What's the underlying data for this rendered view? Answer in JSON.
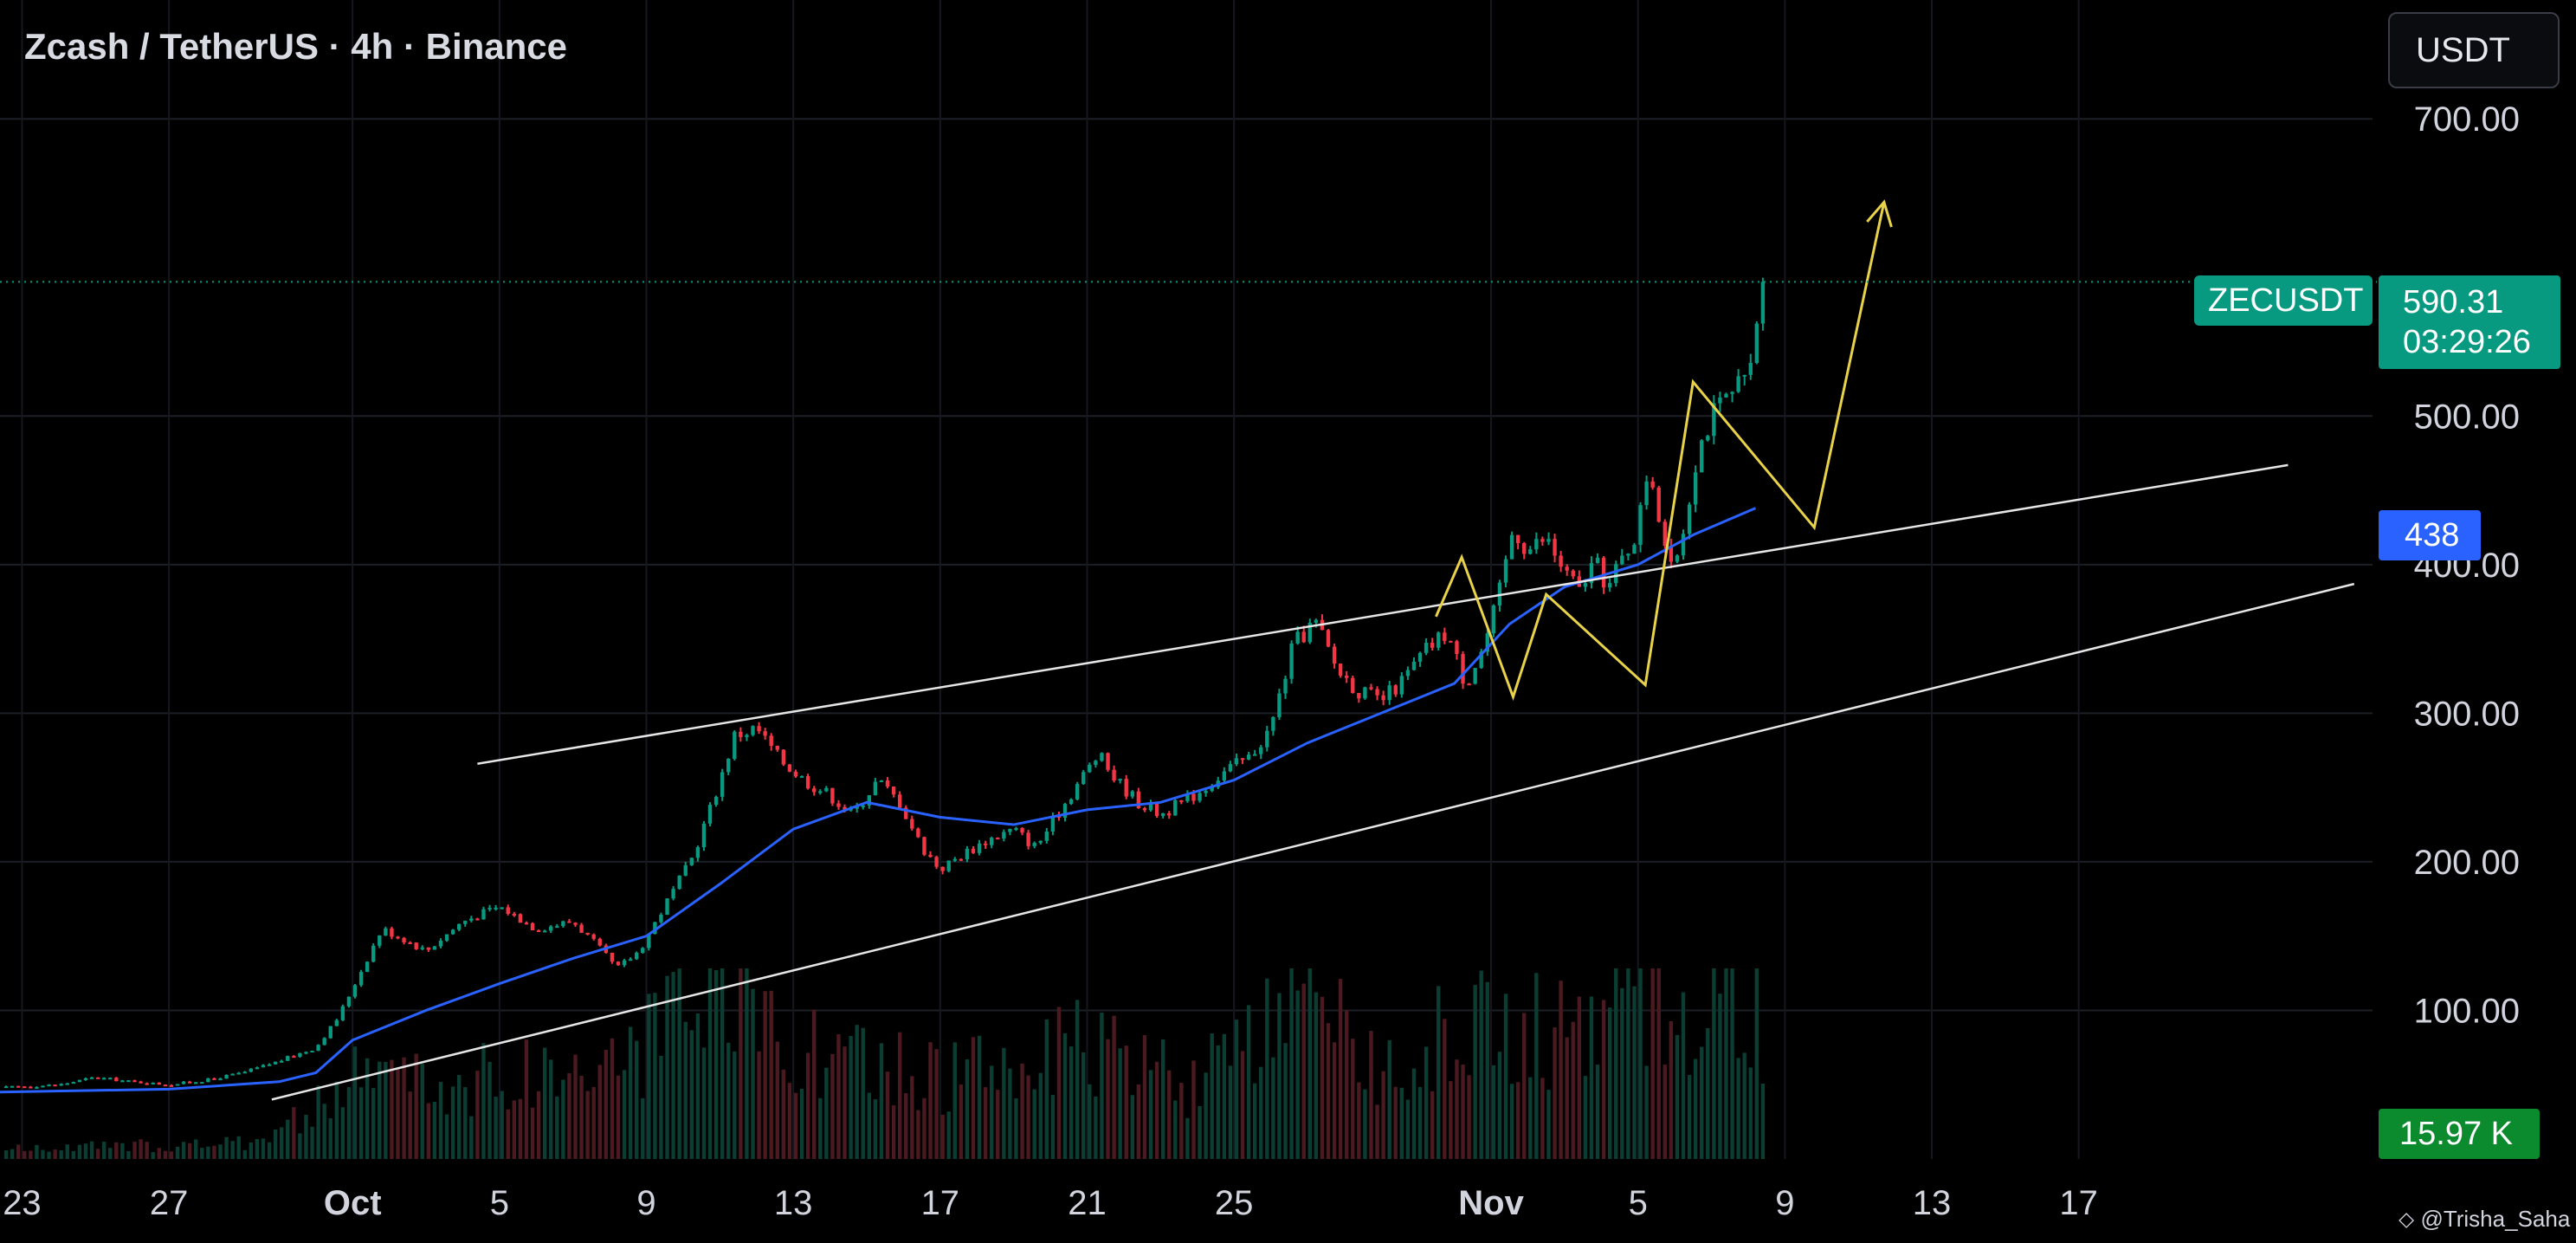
{
  "header": {
    "title": "Zcash / TetherUS · 4h · Binance",
    "quote_currency_button": "USDT"
  },
  "price_tags": {
    "symbol": "ZECUSDT",
    "last_price": "590.31",
    "countdown": "03:29:26",
    "ma_value": "438",
    "volume_value": "15.97 K"
  },
  "watermark": {
    "icon": "tradingview-logo-icon",
    "text": "@Trisha_Saha"
  },
  "colors": {
    "up": "#089981",
    "down": "#f23645",
    "ma": "#2962ff",
    "drawing": "#e8d24a",
    "channel": "#e6e6e6",
    "background": "#000000"
  },
  "chart_data": {
    "type": "candlestick",
    "symbol": "ZECUSDT",
    "timeframe": "4h",
    "y_axis_ticks": [
      "700.00",
      "500.00",
      "400.00",
      "300.00",
      "200.00",
      "100.00"
    ],
    "y_range": [
      0,
      780
    ],
    "x_axis_ticks": [
      {
        "label": "23",
        "day": -8
      },
      {
        "label": "27",
        "day": -4
      },
      {
        "label": "Oct",
        "day": 1
      },
      {
        "label": "5",
        "day": 5
      },
      {
        "label": "9",
        "day": 9
      },
      {
        "label": "13",
        "day": 13
      },
      {
        "label": "17",
        "day": 17
      },
      {
        "label": "21",
        "day": 21
      },
      {
        "label": "25",
        "day": 25
      },
      {
        "label": "Nov",
        "day": 32
      },
      {
        "label": "5",
        "day": 36
      },
      {
        "label": "9",
        "day": 40
      },
      {
        "label": "13",
        "day": 44
      },
      {
        "label": "17",
        "day": 48
      }
    ],
    "x_range": [
      -8.6,
      56
    ],
    "price_path": [
      [
        -8.6,
        48
      ],
      [
        -7,
        50
      ],
      [
        -6,
        55
      ],
      [
        -5,
        52
      ],
      [
        -4,
        50
      ],
      [
        -3,
        53
      ],
      [
        -2,
        58
      ],
      [
        -1,
        66
      ],
      [
        0,
        75
      ],
      [
        0.6,
        95
      ],
      [
        1.2,
        125
      ],
      [
        1.8,
        155
      ],
      [
        2.4,
        148
      ],
      [
        3,
        140
      ],
      [
        4,
        160
      ],
      [
        5,
        170
      ],
      [
        6,
        155
      ],
      [
        7,
        160
      ],
      [
        7.6,
        145
      ],
      [
        8.2,
        128
      ],
      [
        8.8,
        140
      ],
      [
        9.6,
        175
      ],
      [
        10.2,
        200
      ],
      [
        10.8,
        240
      ],
      [
        11.4,
        285
      ],
      [
        12,
        290
      ],
      [
        12.6,
        270
      ],
      [
        13.3,
        255
      ],
      [
        14,
        245
      ],
      [
        14.6,
        232
      ],
      [
        15.3,
        255
      ],
      [
        15.9,
        240
      ],
      [
        16.5,
        210
      ],
      [
        17,
        195
      ],
      [
        17.6,
        205
      ],
      [
        18.3,
        215
      ],
      [
        19,
        222
      ],
      [
        19.6,
        210
      ],
      [
        20.2,
        232
      ],
      [
        20.8,
        255
      ],
      [
        21.3,
        272
      ],
      [
        21.8,
        255
      ],
      [
        22.4,
        240
      ],
      [
        23,
        232
      ],
      [
        23.6,
        240
      ],
      [
        24.2,
        250
      ],
      [
        24.8,
        262
      ],
      [
        25.4,
        270
      ],
      [
        26,
        290
      ],
      [
        26.6,
        345
      ],
      [
        27.2,
        362
      ],
      [
        27.8,
        330
      ],
      [
        28.4,
        315
      ],
      [
        29,
        308
      ],
      [
        29.6,
        322
      ],
      [
        30.2,
        342
      ],
      [
        30.8,
        355
      ],
      [
        31.3,
        320
      ],
      [
        31.8,
        345
      ],
      [
        32.2,
        378
      ],
      [
        32.6,
        425
      ],
      [
        33,
        410
      ],
      [
        33.5,
        418
      ],
      [
        34,
        395
      ],
      [
        34.4,
        382
      ],
      [
        34.8,
        402
      ],
      [
        35.2,
        385
      ],
      [
        35.6,
        405
      ],
      [
        36,
        425
      ],
      [
        36.3,
        470
      ],
      [
        36.6,
        430
      ],
      [
        36.9,
        395
      ],
      [
        37.2,
        420
      ],
      [
        37.6,
        475
      ],
      [
        38,
        500
      ],
      [
        38.4,
        510
      ],
      [
        38.8,
        520
      ],
      [
        39.1,
        530
      ],
      [
        39.3,
        580
      ],
      [
        39.45,
        590.31
      ]
    ],
    "volume_path": [
      [
        -8.6,
        0.3
      ],
      [
        -2,
        0.5
      ],
      [
        0,
        1.5
      ],
      [
        1,
        2.5
      ],
      [
        2,
        3.0
      ],
      [
        3,
        2.2
      ],
      [
        5,
        2.6
      ],
      [
        8,
        3.0
      ],
      [
        10,
        4.2
      ],
      [
        11,
        5.0
      ],
      [
        12,
        4.6
      ],
      [
        14,
        3.0
      ],
      [
        17,
        2.6
      ],
      [
        21,
        3.4
      ],
      [
        24,
        2.4
      ],
      [
        27,
        4.6
      ],
      [
        29,
        3.0
      ],
      [
        32,
        4.4
      ],
      [
        34,
        3.8
      ],
      [
        36,
        5.2
      ],
      [
        37,
        4.4
      ],
      [
        38,
        5.8
      ],
      [
        39.3,
        4.6
      ],
      [
        39.45,
        2.4
      ]
    ],
    "moving_average": {
      "name": "MA",
      "points": [
        [
          -8.6,
          45
        ],
        [
          -4,
          47
        ],
        [
          -1,
          52
        ],
        [
          0,
          58
        ],
        [
          1,
          80
        ],
        [
          3,
          100
        ],
        [
          5,
          118
        ],
        [
          7,
          135
        ],
        [
          9,
          150
        ],
        [
          11,
          185
        ],
        [
          13,
          222
        ],
        [
          15,
          240
        ],
        [
          17,
          230
        ],
        [
          19,
          225
        ],
        [
          21,
          235
        ],
        [
          23,
          240
        ],
        [
          25,
          255
        ],
        [
          27,
          280
        ],
        [
          29,
          300
        ],
        [
          31,
          320
        ],
        [
          32.5,
          360
        ],
        [
          34,
          385
        ],
        [
          36,
          400
        ],
        [
          37.5,
          420
        ],
        [
          39.2,
          438
        ]
      ]
    },
    "channel": {
      "upper": [
        [
          4.4,
          266
        ],
        [
          53.7,
          467
        ]
      ],
      "lower": [
        [
          -1.2,
          40
        ],
        [
          55.5,
          387
        ]
      ]
    },
    "projection": {
      "zigzag": [
        [
          30.5,
          365
        ],
        [
          31.2,
          405
        ],
        [
          32.6,
          311
        ],
        [
          33.5,
          380
        ],
        [
          36.2,
          319
        ],
        [
          37.5,
          523
        ],
        [
          40.8,
          425
        ],
        [
          42.7,
          644
        ]
      ],
      "arrow_end": [
        42.7,
        644
      ]
    },
    "last_price": 590.31
  }
}
